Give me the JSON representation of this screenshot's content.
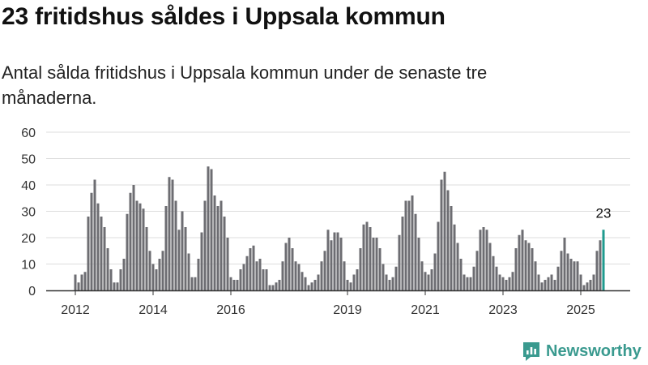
{
  "title": "23 fritidshus såldes i Uppsala kommun",
  "subtitle": "Antal sålda fritidshus i Uppsala kommun under de senaste tre månaderna.",
  "brand": {
    "name": "Newsworthy",
    "icon": "newsworthy-logo-icon",
    "color": "#3a9a8f"
  },
  "colors": {
    "bar": "#6d6d72",
    "highlight": "#1f9a8e",
    "grid": "#dddddd",
    "axis": "#333333"
  },
  "chart_data": {
    "type": "bar",
    "title": "23 fritidshus såldes i Uppsala kommun",
    "xlabel": "",
    "ylabel": "",
    "ylim": [
      0,
      60
    ],
    "yticks": [
      0,
      10,
      20,
      30,
      40,
      50,
      60
    ],
    "grid": true,
    "xtick_labels": [
      {
        "label": "2012",
        "date": "2012-01"
      },
      {
        "label": "2014",
        "date": "2014-01"
      },
      {
        "label": "2016",
        "date": "2016-01"
      },
      {
        "label": "2019",
        "date": "2019-01"
      },
      {
        "label": "2021",
        "date": "2021-01"
      },
      {
        "label": "2023",
        "date": "2023-01"
      },
      {
        "label": "2025",
        "date": "2025-01"
      }
    ],
    "start_month": "2012-01",
    "values": [
      6,
      3,
      6,
      7,
      28,
      37,
      42,
      33,
      28,
      24,
      16,
      8,
      3,
      3,
      8,
      12,
      29,
      37,
      40,
      34,
      33,
      31,
      24,
      15,
      10,
      8,
      12,
      15,
      32,
      43,
      42,
      34,
      23,
      30,
      24,
      14,
      5,
      5,
      12,
      22,
      34,
      47,
      46,
      36,
      32,
      34,
      28,
      20,
      5,
      4,
      4,
      8,
      10,
      13,
      16,
      17,
      11,
      12,
      8,
      8,
      2,
      2,
      3,
      4,
      11,
      18,
      20,
      16,
      11,
      10,
      7,
      5,
      2,
      3,
      4,
      6,
      11,
      15,
      23,
      19,
      22,
      22,
      20,
      11,
      4,
      3,
      6,
      8,
      16,
      25,
      26,
      24,
      20,
      20,
      16,
      10,
      6,
      4,
      5,
      9,
      21,
      28,
      34,
      34,
      36,
      29,
      20,
      11,
      7,
      6,
      8,
      14,
      26,
      42,
      45,
      38,
      32,
      25,
      18,
      12,
      6,
      5,
      5,
      9,
      15,
      23,
      24,
      23,
      18,
      13,
      9,
      6,
      5,
      4,
      5,
      7,
      16,
      21,
      23,
      19,
      18,
      16,
      11,
      6,
      3,
      4,
      5,
      6,
      4,
      9,
      15,
      20,
      14,
      12,
      11,
      11,
      6,
      2,
      3,
      4,
      6,
      15,
      19,
      23
    ],
    "highlight_last": 3,
    "annotations": [
      {
        "label": "23",
        "target": "last"
      }
    ]
  }
}
